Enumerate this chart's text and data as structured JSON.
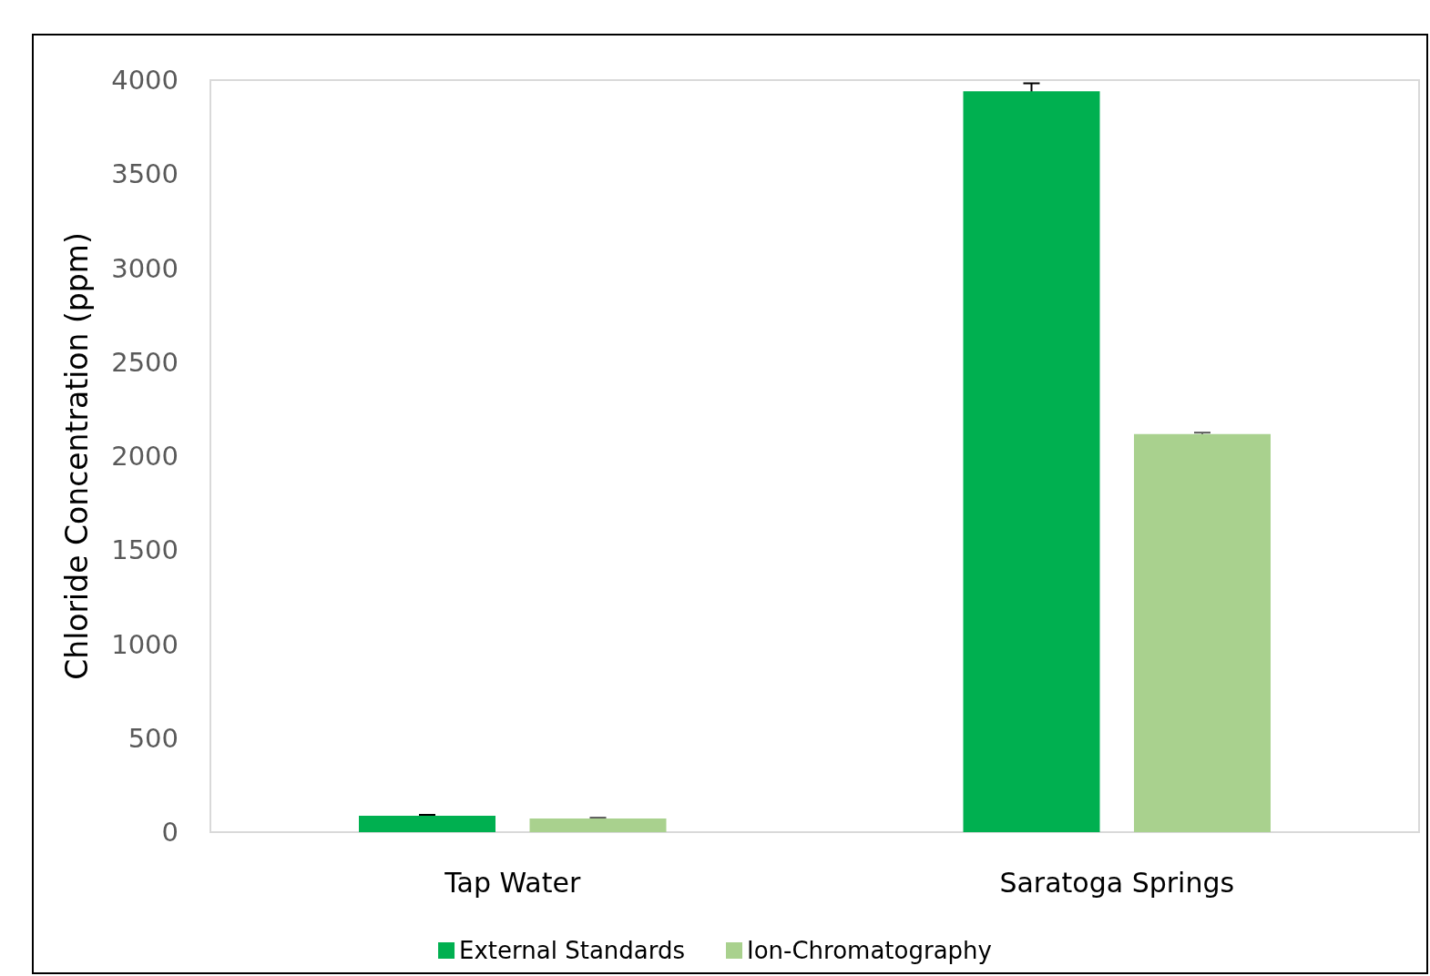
{
  "chart_data": {
    "type": "bar",
    "ylabel": "Chloride Concentration (ppm)",
    "categories": [
      "Tap Water",
      "Saratoga Springs"
    ],
    "series": [
      {
        "name": "External Standards",
        "color": "#00b050",
        "values": [
          87,
          3941
        ],
        "errors": [
          5,
          42
        ]
      },
      {
        "name": "Ion-Chromatography",
        "color": "#a9d18e",
        "values": [
          73,
          2117
        ],
        "errors": [
          4,
          8
        ]
      }
    ],
    "ylim": [
      0,
      4000
    ],
    "yticks": [
      0,
      500,
      1000,
      1500,
      2000,
      2500,
      3000,
      3500,
      4000
    ],
    "grid": false,
    "legend": "bottom"
  }
}
